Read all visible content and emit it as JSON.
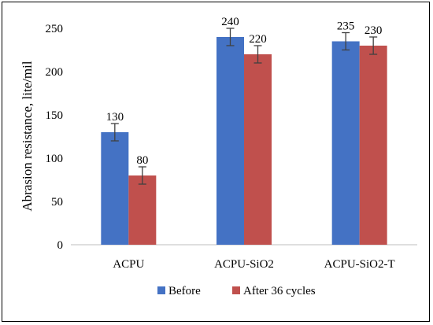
{
  "chart_data": {
    "type": "bar",
    "categories": [
      "ACPU",
      "ACPU-SiO2",
      "ACPU-SiO2-T"
    ],
    "series": [
      {
        "name": "Before",
        "values": [
          130,
          240,
          235
        ],
        "error": [
          10,
          10,
          10
        ],
        "color": "#4472C4"
      },
      {
        "name": "After 36 cycles",
        "values": [
          80,
          220,
          230
        ],
        "error": [
          10,
          10,
          10
        ],
        "color": "#C0504D"
      }
    ],
    "title": "",
    "xlabel": "",
    "ylabel": "Abrasion resistance, lite/mil",
    "ylim": [
      0,
      250
    ],
    "yticks": [
      0,
      50,
      100,
      150,
      200,
      250
    ],
    "grid": false,
    "legend_position": "bottom",
    "error_bar_color": "#404040"
  }
}
